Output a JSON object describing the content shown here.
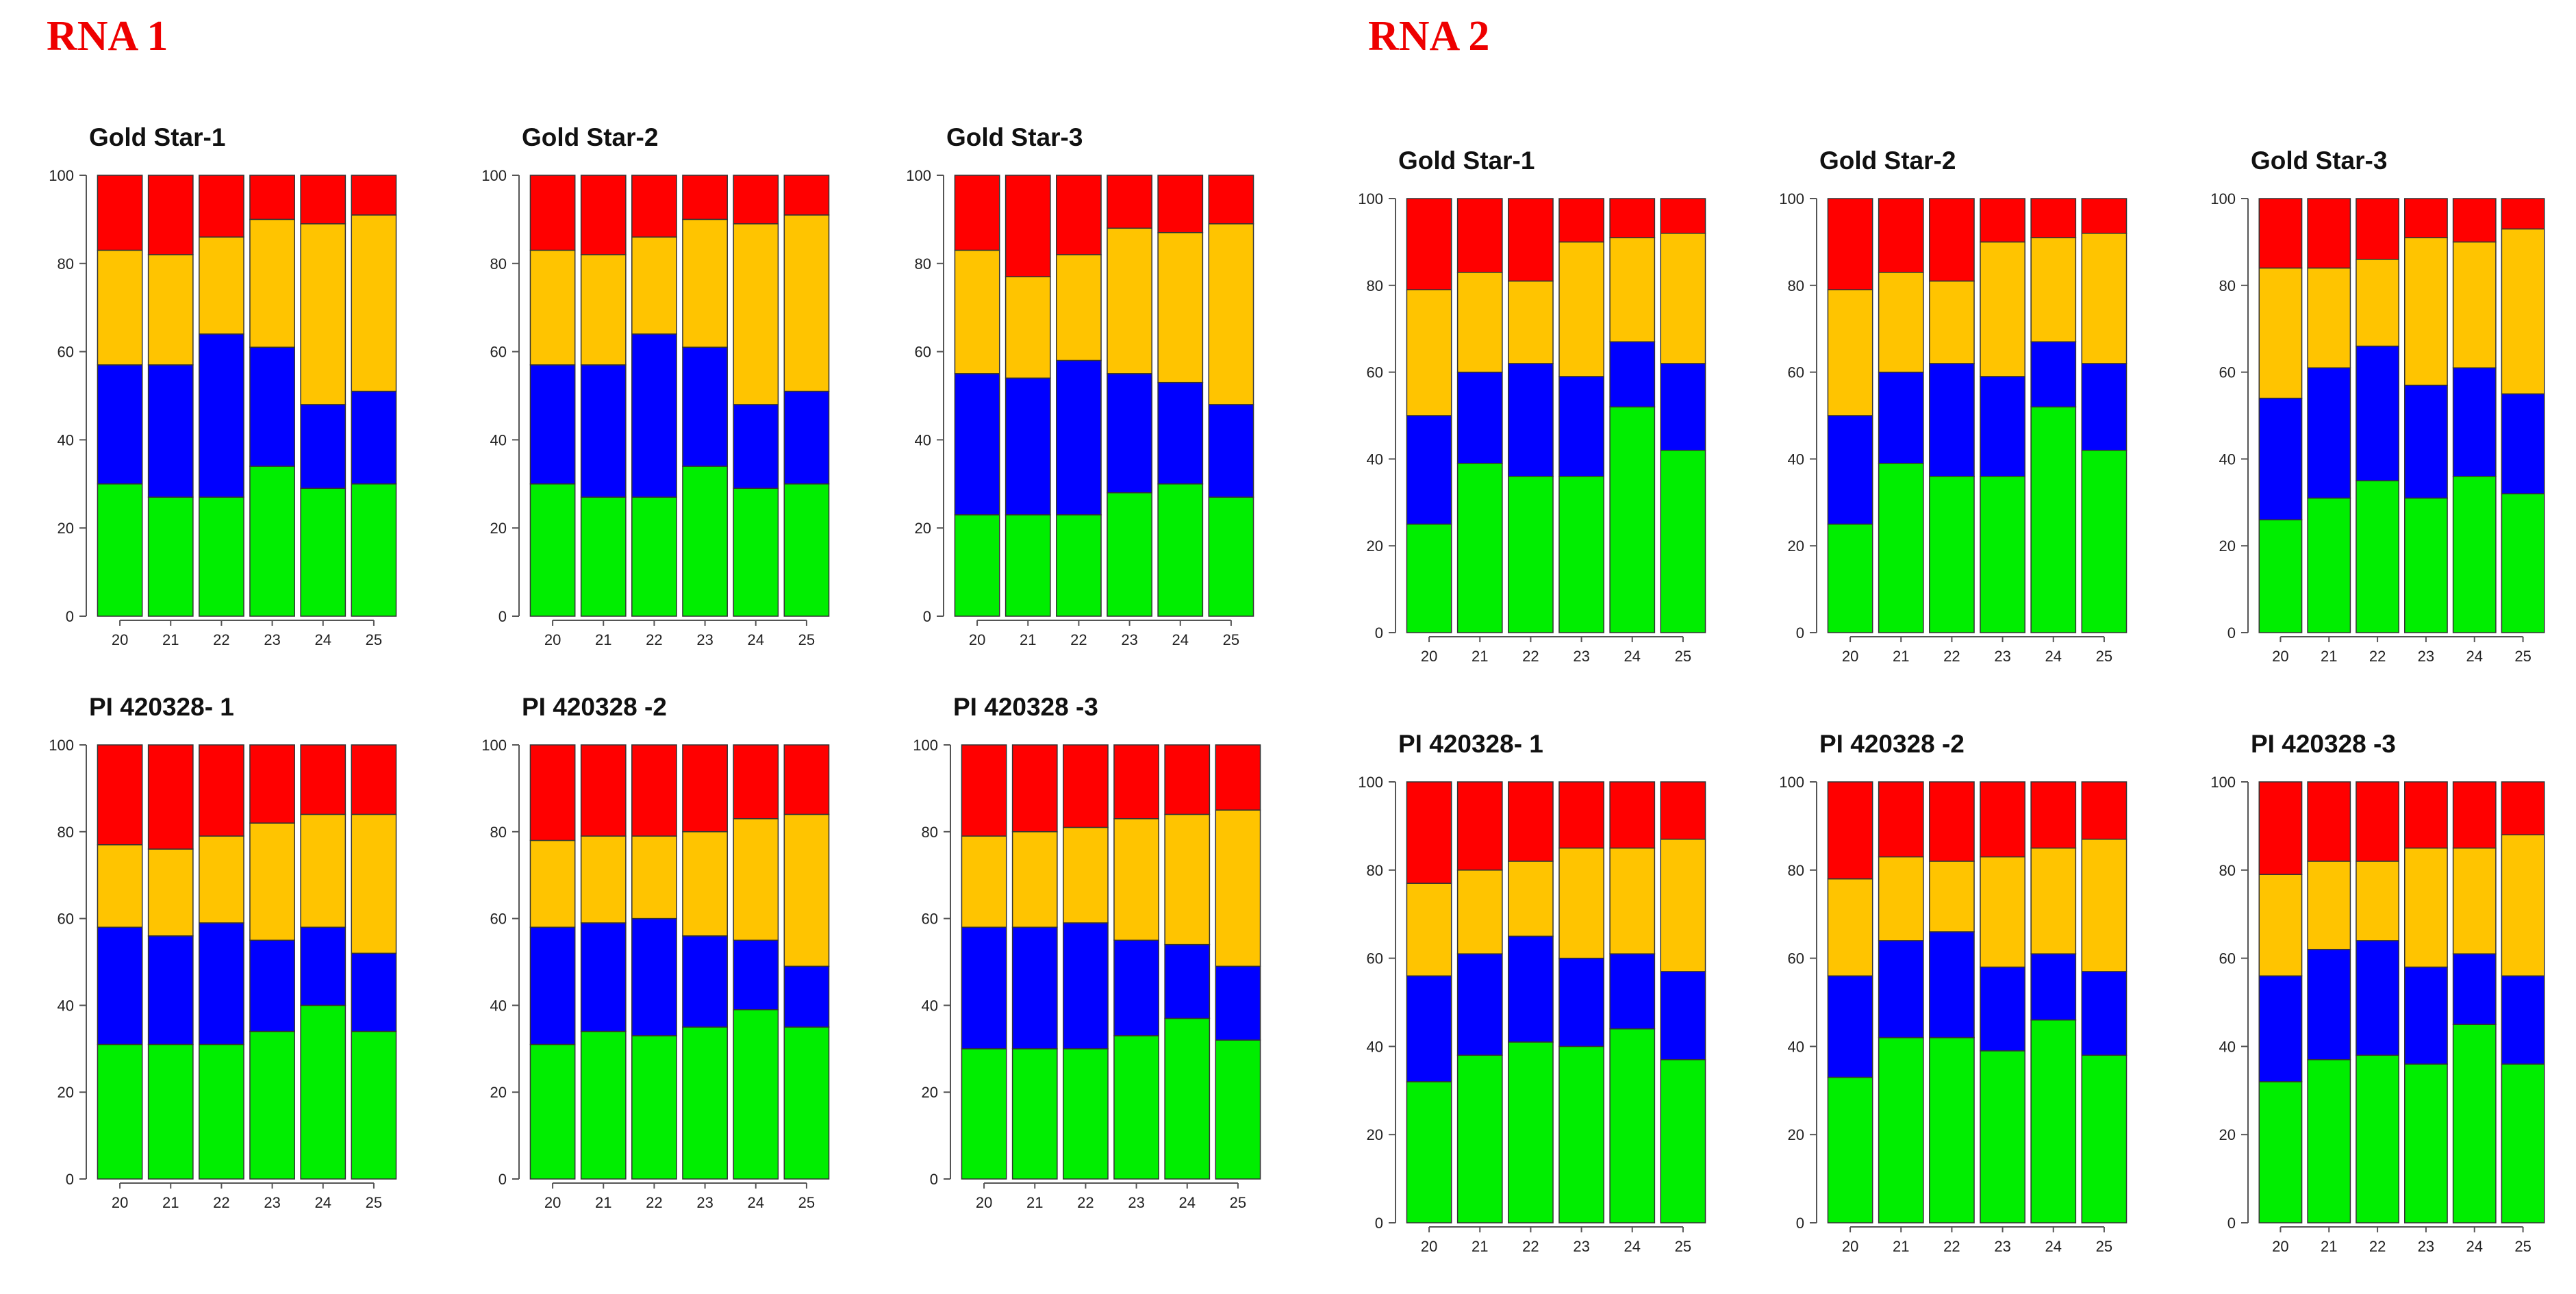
{
  "titles": {
    "rna1": "RNA 1",
    "rna2": "RNA 2"
  },
  "colors": {
    "green": "#00ee00",
    "blue": "#0000ff",
    "orange": "#ffc400",
    "red": "#ff0000",
    "title": "#ee0000",
    "text": "#111111",
    "axis": "#555555",
    "bar_border": "#333333"
  },
  "chart_data": [
    {
      "type": "bar",
      "stacked": true,
      "group": "RNA 1",
      "title": "Gold Star-1",
      "categories": [
        "20",
        "21",
        "22",
        "23",
        "24",
        "25"
      ],
      "ylim": [
        0,
        100
      ],
      "yticks": [
        "0",
        "20",
        "40",
        "60",
        "80",
        "100"
      ],
      "series": [
        {
          "name": "green",
          "values": [
            30,
            27,
            27,
            34,
            29,
            30
          ]
        },
        {
          "name": "blue",
          "values": [
            27,
            30,
            37,
            27,
            19,
            21
          ]
        },
        {
          "name": "orange",
          "values": [
            26,
            25,
            22,
            29,
            41,
            40
          ]
        },
        {
          "name": "red",
          "values": [
            17,
            18,
            14,
            10,
            11,
            9
          ]
        }
      ]
    },
    {
      "type": "bar",
      "stacked": true,
      "group": "RNA 1",
      "title": "Gold Star-2",
      "categories": [
        "20",
        "21",
        "22",
        "23",
        "24",
        "25"
      ],
      "ylim": [
        0,
        100
      ],
      "yticks": [
        "0",
        "20",
        "40",
        "60",
        "80",
        "100"
      ],
      "series": [
        {
          "name": "green",
          "values": [
            30,
            27,
            27,
            34,
            29,
            30
          ]
        },
        {
          "name": "blue",
          "values": [
            27,
            30,
            37,
            27,
            19,
            21
          ]
        },
        {
          "name": "orange",
          "values": [
            26,
            25,
            22,
            29,
            41,
            40
          ]
        },
        {
          "name": "red",
          "values": [
            17,
            18,
            14,
            10,
            11,
            9
          ]
        }
      ]
    },
    {
      "type": "bar",
      "stacked": true,
      "group": "RNA 1",
      "title": "Gold Star-3",
      "categories": [
        "20",
        "21",
        "22",
        "23",
        "24",
        "25"
      ],
      "ylim": [
        0,
        100
      ],
      "yticks": [
        "0",
        "20",
        "40",
        "60",
        "80",
        "100"
      ],
      "series": [
        {
          "name": "green",
          "values": [
            23,
            23,
            23,
            28,
            30,
            27
          ]
        },
        {
          "name": "blue",
          "values": [
            32,
            31,
            35,
            27,
            23,
            21
          ]
        },
        {
          "name": "orange",
          "values": [
            28,
            23,
            24,
            33,
            34,
            41
          ]
        },
        {
          "name": "red",
          "values": [
            17,
            23,
            18,
            12,
            13,
            11
          ]
        }
      ]
    },
    {
      "type": "bar",
      "stacked": true,
      "group": "RNA 1",
      "title": "PI 420328- 1",
      "categories": [
        "20",
        "21",
        "22",
        "23",
        "24",
        "25"
      ],
      "ylim": [
        0,
        100
      ],
      "yticks": [
        "0",
        "20",
        "40",
        "60",
        "80",
        "100"
      ],
      "series": [
        {
          "name": "green",
          "values": [
            31,
            31,
            31,
            34,
            40,
            34
          ]
        },
        {
          "name": "blue",
          "values": [
            27,
            25,
            28,
            21,
            18,
            18
          ]
        },
        {
          "name": "orange",
          "values": [
            19,
            20,
            20,
            27,
            26,
            32
          ]
        },
        {
          "name": "red",
          "values": [
            23,
            24,
            21,
            18,
            16,
            16
          ]
        }
      ]
    },
    {
      "type": "bar",
      "stacked": true,
      "group": "RNA 1",
      "title": "PI 420328 -2",
      "categories": [
        "20",
        "21",
        "22",
        "23",
        "24",
        "25"
      ],
      "ylim": [
        0,
        100
      ],
      "yticks": [
        "0",
        "20",
        "40",
        "60",
        "80",
        "100"
      ],
      "series": [
        {
          "name": "green",
          "values": [
            31,
            34,
            33,
            35,
            39,
            35
          ]
        },
        {
          "name": "blue",
          "values": [
            27,
            25,
            27,
            21,
            16,
            14
          ]
        },
        {
          "name": "orange",
          "values": [
            20,
            20,
            19,
            24,
            28,
            35
          ]
        },
        {
          "name": "red",
          "values": [
            22,
            21,
            21,
            20,
            17,
            16
          ]
        }
      ]
    },
    {
      "type": "bar",
      "stacked": true,
      "group": "RNA 1",
      "title": "PI 420328 -3",
      "categories": [
        "20",
        "21",
        "22",
        "23",
        "24",
        "25"
      ],
      "ylim": [
        0,
        100
      ],
      "yticks": [
        "0",
        "20",
        "40",
        "60",
        "80",
        "100"
      ],
      "series": [
        {
          "name": "green",
          "values": [
            30,
            30,
            30,
            33,
            37,
            32
          ]
        },
        {
          "name": "blue",
          "values": [
            28,
            28,
            29,
            22,
            17,
            17
          ]
        },
        {
          "name": "orange",
          "values": [
            21,
            22,
            22,
            28,
            30,
            36
          ]
        },
        {
          "name": "red",
          "values": [
            21,
            20,
            19,
            17,
            16,
            15
          ]
        }
      ]
    },
    {
      "type": "bar",
      "stacked": true,
      "group": "RNA 2",
      "title": "Gold Star-1",
      "categories": [
        "20",
        "21",
        "22",
        "23",
        "24",
        "25"
      ],
      "ylim": [
        0,
        100
      ],
      "yticks": [
        "0",
        "20",
        "40",
        "60",
        "80",
        "100"
      ],
      "series": [
        {
          "name": "green",
          "values": [
            25,
            39,
            36,
            36,
            52,
            42
          ]
        },
        {
          "name": "blue",
          "values": [
            25,
            21,
            26,
            23,
            15,
            20
          ]
        },
        {
          "name": "orange",
          "values": [
            29,
            23,
            19,
            31,
            24,
            30
          ]
        },
        {
          "name": "red",
          "values": [
            21,
            17,
            19,
            10,
            9,
            8
          ]
        }
      ]
    },
    {
      "type": "bar",
      "stacked": true,
      "group": "RNA 2",
      "title": "Gold Star-2",
      "categories": [
        "20",
        "21",
        "22",
        "23",
        "24",
        "25"
      ],
      "ylim": [
        0,
        100
      ],
      "yticks": [
        "0",
        "20",
        "40",
        "60",
        "80",
        "100"
      ],
      "series": [
        {
          "name": "green",
          "values": [
            25,
            39,
            36,
            36,
            52,
            42
          ]
        },
        {
          "name": "blue",
          "values": [
            25,
            21,
            26,
            23,
            15,
            20
          ]
        },
        {
          "name": "orange",
          "values": [
            29,
            23,
            19,
            31,
            24,
            30
          ]
        },
        {
          "name": "red",
          "values": [
            21,
            17,
            19,
            10,
            9,
            8
          ]
        }
      ]
    },
    {
      "type": "bar",
      "stacked": true,
      "group": "RNA 2",
      "title": "Gold Star-3",
      "categories": [
        "20",
        "21",
        "22",
        "23",
        "24",
        "25"
      ],
      "ylim": [
        0,
        100
      ],
      "yticks": [
        "0",
        "20",
        "40",
        "60",
        "80",
        "100"
      ],
      "series": [
        {
          "name": "green",
          "values": [
            26,
            31,
            35,
            31,
            36,
            32
          ]
        },
        {
          "name": "blue",
          "values": [
            28,
            30,
            31,
            26,
            25,
            23
          ]
        },
        {
          "name": "orange",
          "values": [
            30,
            23,
            20,
            34,
            29,
            38
          ]
        },
        {
          "name": "red",
          "values": [
            16,
            16,
            14,
            9,
            10,
            7
          ]
        }
      ]
    },
    {
      "type": "bar",
      "stacked": true,
      "group": "RNA 2",
      "title": "PI 420328- 1",
      "categories": [
        "20",
        "21",
        "22",
        "23",
        "24",
        "25"
      ],
      "ylim": [
        0,
        100
      ],
      "yticks": [
        "0",
        "20",
        "40",
        "60",
        "80",
        "100"
      ],
      "series": [
        {
          "name": "green",
          "values": [
            32,
            38,
            41,
            40,
            44,
            37
          ]
        },
        {
          "name": "blue",
          "values": [
            24,
            23,
            24,
            20,
            17,
            20
          ]
        },
        {
          "name": "orange",
          "values": [
            21,
            19,
            17,
            25,
            24,
            30
          ]
        },
        {
          "name": "red",
          "values": [
            23,
            20,
            18,
            15,
            15,
            13
          ]
        }
      ]
    },
    {
      "type": "bar",
      "stacked": true,
      "group": "RNA 2",
      "title": "PI 420328 -2",
      "categories": [
        "20",
        "21",
        "22",
        "23",
        "24",
        "25"
      ],
      "ylim": [
        0,
        100
      ],
      "yticks": [
        "0",
        "20",
        "40",
        "60",
        "80",
        "100"
      ],
      "series": [
        {
          "name": "green",
          "values": [
            33,
            42,
            42,
            39,
            46,
            38
          ]
        },
        {
          "name": "blue",
          "values": [
            23,
            22,
            24,
            19,
            15,
            19
          ]
        },
        {
          "name": "orange",
          "values": [
            22,
            19,
            16,
            25,
            24,
            30
          ]
        },
        {
          "name": "red",
          "values": [
            22,
            17,
            18,
            17,
            15,
            13
          ]
        }
      ]
    },
    {
      "type": "bar",
      "stacked": true,
      "group": "RNA 2",
      "title": "PI 420328 -3",
      "categories": [
        "20",
        "21",
        "22",
        "23",
        "24",
        "25"
      ],
      "ylim": [
        0,
        100
      ],
      "yticks": [
        "0",
        "20",
        "40",
        "60",
        "80",
        "100"
      ],
      "series": [
        {
          "name": "green",
          "values": [
            32,
            37,
            38,
            36,
            45,
            36
          ]
        },
        {
          "name": "blue",
          "values": [
            24,
            25,
            26,
            22,
            16,
            20
          ]
        },
        {
          "name": "orange",
          "values": [
            23,
            20,
            18,
            27,
            24,
            32
          ]
        },
        {
          "name": "red",
          "values": [
            21,
            18,
            18,
            15,
            15,
            12
          ]
        }
      ]
    }
  ]
}
